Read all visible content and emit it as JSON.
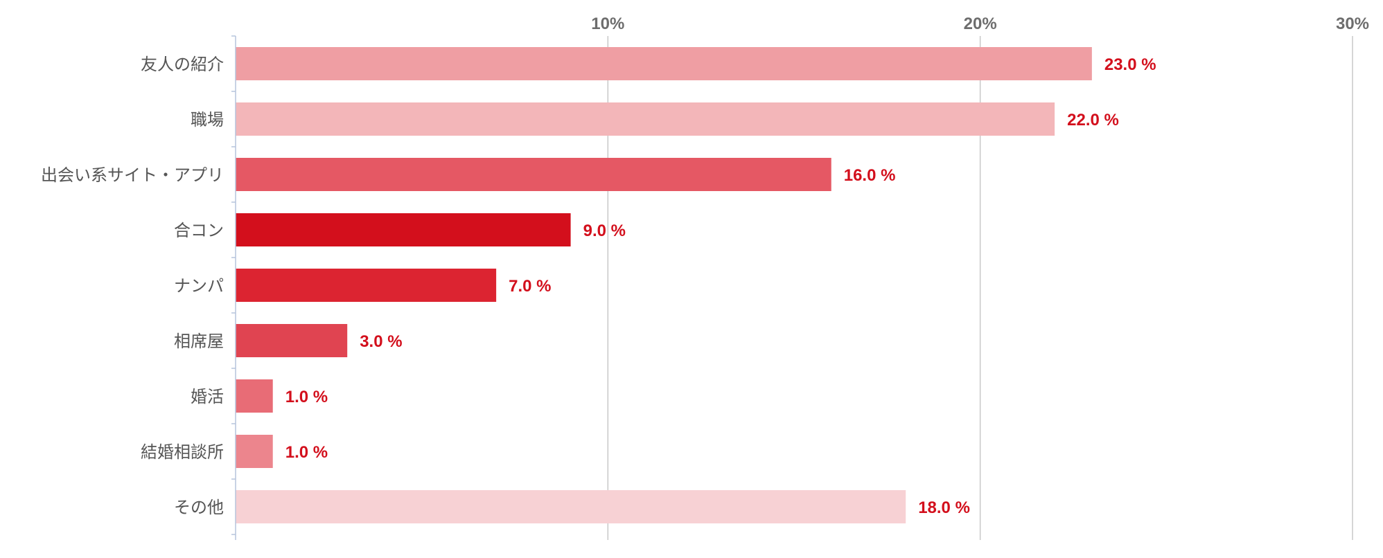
{
  "chart_data": {
    "type": "bar",
    "orientation": "horizontal",
    "categories": [
      "友人の紹介",
      "職場",
      "出会い系サイト・アプリ",
      "合コン",
      "ナンパ",
      "相席屋",
      "婚活",
      "結婚相談所",
      "その他"
    ],
    "values": [
      23.0,
      22.0,
      16.0,
      9.0,
      7.0,
      3.0,
      1.0,
      1.0,
      18.0
    ],
    "value_labels": [
      "23.0 %",
      "22.0 %",
      "16.0 %",
      "9.0 %",
      "7.0 %",
      "3.0 %",
      "1.0 %",
      "1.0 %",
      "18.0 %"
    ],
    "bar_colors": [
      "#ef9ea3",
      "#f3b6b9",
      "#e55864",
      "#d30f1c",
      "#dc2431",
      "#e04451",
      "#e86c76",
      "#ec858d",
      "#f7d1d4"
    ],
    "xlim": [
      0,
      30
    ],
    "x_ticks": [
      10,
      20,
      30
    ],
    "x_tick_labels": [
      "10%",
      "20%",
      "30%"
    ],
    "x_axis_position": "top",
    "grid": true,
    "label_color": "#d30f1c"
  }
}
